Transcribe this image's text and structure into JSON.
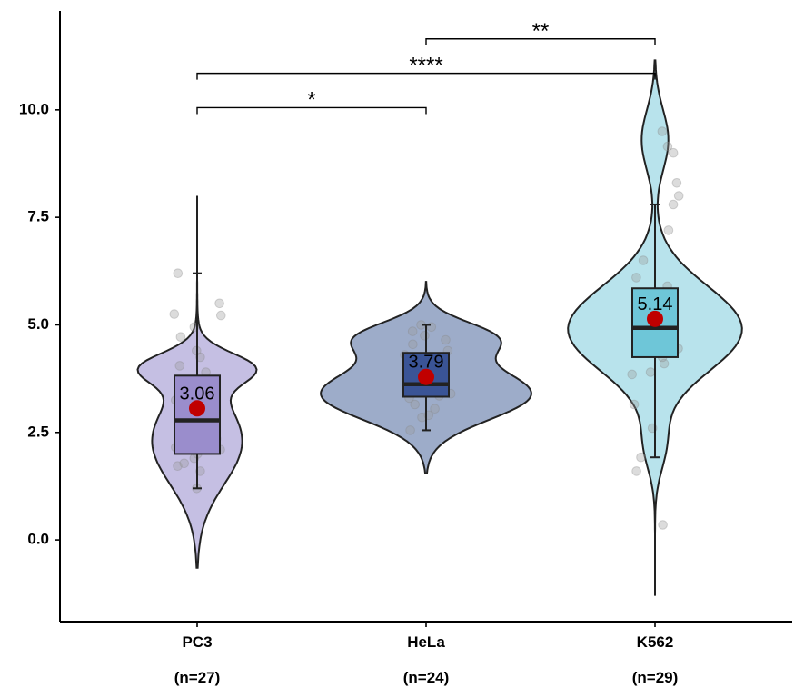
{
  "chart_data": {
    "type": "violin",
    "ylim": [
      -1.9,
      12.3
    ],
    "yticks": [
      0.0,
      2.5,
      5.0,
      7.5,
      10.0
    ],
    "ytick_labels": [
      "0.0",
      "2.5",
      "5.0",
      "7.5",
      "10.0"
    ],
    "groups": [
      {
        "name": "PC3",
        "n_label": "(n=27)",
        "fill": "#c5bfe3",
        "box_fill": "#9a8dcc",
        "violin": {
          "ymin": -0.65,
          "ymax": 8.0,
          "modes": [
            [
              2.3,
              1.0,
              1.3
            ],
            [
              4.0,
              0.35,
              1.4
            ]
          ],
          "maxhalf": 0.26
        },
        "box": {
          "q1": 2.0,
          "median": 2.78,
          "q3": 3.82,
          "whisker_low": 1.2,
          "whisker_high": 6.2
        },
        "mean": 3.06,
        "mean_label": "3.06",
        "points": [
          1.2,
          1.6,
          1.72,
          1.78,
          1.9,
          2.0,
          2.15,
          2.35,
          2.5,
          2.65,
          2.8,
          3.0,
          3.1,
          3.25,
          3.4,
          3.6,
          3.9,
          4.05,
          4.25,
          4.4,
          4.72,
          5.25,
          5.5,
          5.22,
          6.2,
          4.95,
          2.1
        ]
      },
      {
        "name": "HeLa",
        "n_label": "(n=24)",
        "fill": "#9dacc9",
        "box_fill": "#3a5496",
        "violin": {
          "ymin": 1.55,
          "ymax": 6.0,
          "modes": [
            [
              3.4,
              0.6,
              1.0
            ],
            [
              4.7,
              0.38,
              0.6
            ]
          ],
          "maxhalf": 0.46
        },
        "box": {
          "q1": 3.33,
          "median": 3.62,
          "q3": 4.35,
          "whisker_low": 2.55,
          "whisker_high": 5.0
        },
        "mean": 3.79,
        "mean_label": "3.79",
        "points": [
          2.55,
          2.85,
          2.9,
          3.05,
          3.15,
          3.3,
          3.4,
          3.5,
          3.55,
          3.62,
          3.7,
          3.8,
          3.95,
          4.05,
          4.15,
          4.3,
          4.4,
          4.55,
          4.65,
          4.75,
          4.85,
          4.95,
          5.0,
          3.35
        ]
      },
      {
        "name": "K562",
        "n_label": "(n=29)",
        "fill": "#b8e3ec",
        "box_fill": "#6ec6d8",
        "violin": {
          "ymin": -1.3,
          "ymax": 11.15,
          "modes": [
            [
              4.9,
              1.0,
              1.3
            ],
            [
              9.3,
              0.7,
              0.2
            ],
            [
              2.2,
              0.6,
              0.15
            ]
          ],
          "maxhalf": 0.38
        },
        "box": {
          "q1": 4.25,
          "median": 4.93,
          "q3": 5.85,
          "whisker_low": 1.92,
          "whisker_high": 7.8
        },
        "mean": 5.14,
        "mean_label": "5.14",
        "points": [
          0.35,
          1.6,
          1.92,
          2.6,
          3.15,
          3.85,
          3.9,
          4.1,
          4.25,
          4.45,
          4.6,
          4.8,
          4.92,
          5.05,
          5.2,
          5.35,
          5.5,
          5.6,
          5.75,
          5.9,
          6.1,
          6.5,
          7.2,
          7.8,
          8.0,
          8.3,
          9.0,
          9.15,
          9.5
        ]
      }
    ],
    "comparisons": [
      {
        "from": "PC3",
        "to": "HeLa",
        "y": 10.05,
        "label": "*"
      },
      {
        "from": "PC3",
        "to": "K562",
        "y": 10.85,
        "label": "****"
      },
      {
        "from": "HeLa",
        "to": "K562",
        "y": 11.65,
        "label": "**"
      }
    ]
  }
}
